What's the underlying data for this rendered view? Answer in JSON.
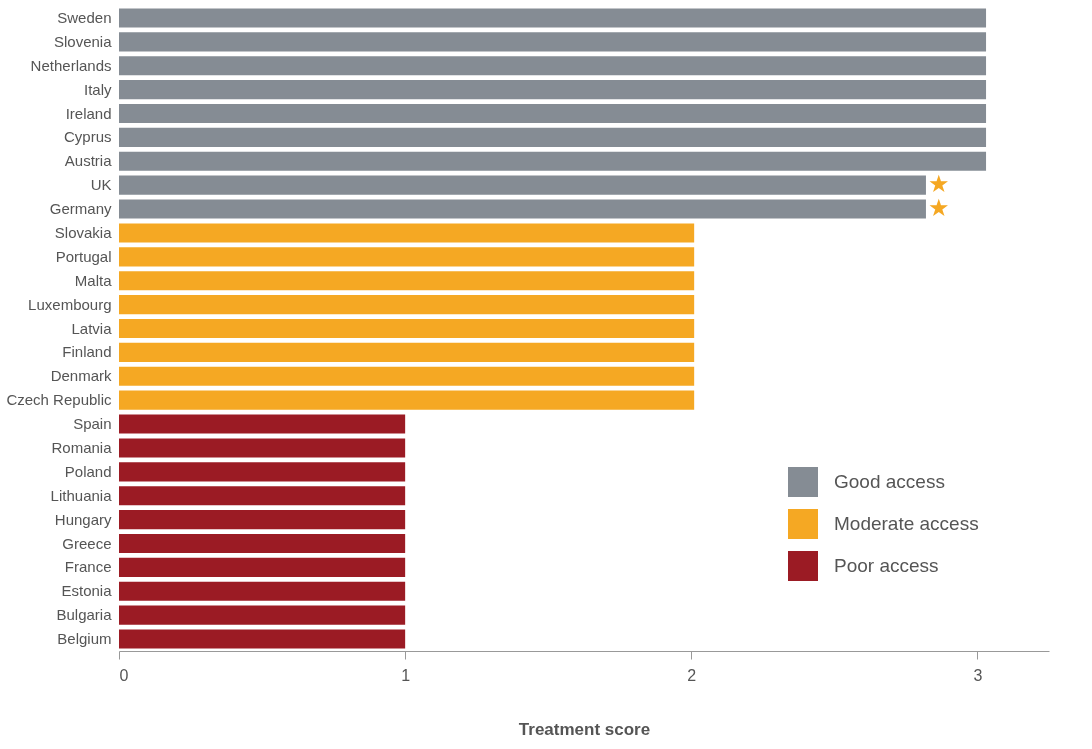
{
  "chart_data": {
    "type": "bar",
    "orientation": "horizontal",
    "xlabel": "Treatment score",
    "categories": [
      "Sweden",
      "Slovenia",
      "Netherlands",
      "Italy",
      "Ireland",
      "Cyprus",
      "Austria",
      "UK",
      "Germany",
      "Slovakia",
      "Portugal",
      "Malta",
      "Luxembourg",
      "Latvia",
      "Finland",
      "Denmark",
      "Czech Republic",
      "Spain",
      "Romania",
      "Poland",
      "Lithuania",
      "Hungary",
      "Greece",
      "France",
      "Estonia",
      "Bulgaria",
      "Belgium"
    ],
    "series": [
      {
        "name": "Good access",
        "color": "#858c94",
        "values": [
          3.03,
          3.03,
          3.03,
          3.03,
          3.03,
          3.03,
          3.03,
          2.82,
          2.82,
          null,
          null,
          null,
          null,
          null,
          null,
          null,
          null,
          null,
          null,
          null,
          null,
          null,
          null,
          null,
          null,
          null,
          null
        ]
      },
      {
        "name": "Moderate access",
        "color": "#f5a823",
        "values": [
          null,
          null,
          null,
          null,
          null,
          null,
          null,
          null,
          null,
          2.01,
          2.01,
          2.01,
          2.01,
          2.01,
          2.01,
          2.01,
          2.01,
          null,
          null,
          null,
          null,
          null,
          null,
          null,
          null,
          null,
          null
        ]
      },
      {
        "name": "Poor access",
        "color": "#9b1b24",
        "values": [
          null,
          null,
          null,
          null,
          null,
          null,
          null,
          null,
          null,
          null,
          null,
          null,
          null,
          null,
          null,
          null,
          null,
          1,
          1,
          1,
          1,
          1,
          1,
          1,
          1,
          1,
          1
        ]
      }
    ],
    "xlim": [
      0,
      3.25
    ],
    "xticks": [
      0,
      1,
      2,
      3
    ],
    "grid": false,
    "legend": "bottom right",
    "annotations": [
      {
        "text": "★",
        "x": 2.82,
        "y": "UK"
      },
      {
        "text": "★",
        "x": 2.82,
        "y": "Germany"
      }
    ]
  }
}
